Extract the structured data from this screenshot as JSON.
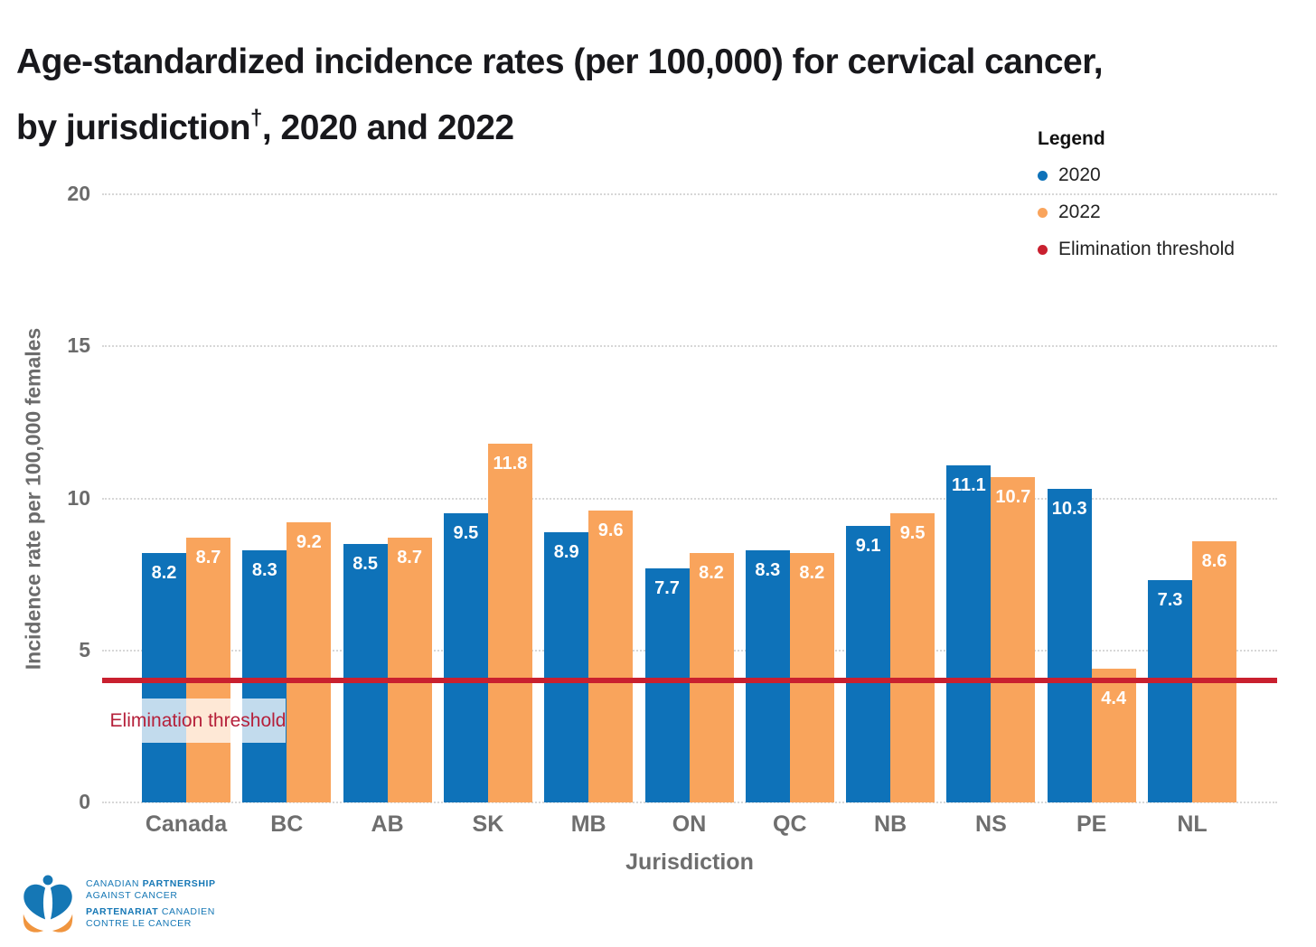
{
  "title": {
    "line1": "Age-standardized incidence rates (per 100,000) for cervical cancer,",
    "line2_pre": "by jurisdiction",
    "line2_sup": "†",
    "line2_post": ", 2020 and 2022"
  },
  "legend": {
    "heading": "Legend",
    "items": [
      {
        "label": "2020",
        "color": "#0e72b9"
      },
      {
        "label": "2022",
        "color": "#f9a45c"
      },
      {
        "label": "Elimination threshold",
        "color": "#c9202f"
      }
    ]
  },
  "chart_data": {
    "type": "bar",
    "title": "Age-standardized incidence rates (per 100,000) for cervical cancer, by jurisdiction, 2020 and 2022",
    "categories": [
      "Canada",
      "BC",
      "AB",
      "SK",
      "MB",
      "ON",
      "QC",
      "NB",
      "NS",
      "PE",
      "NL"
    ],
    "series": [
      {
        "name": "2020",
        "color": "#0e72b9",
        "values": [
          8.2,
          8.3,
          8.5,
          9.5,
          8.9,
          7.7,
          8.3,
          9.1,
          11.1,
          10.3,
          7.3
        ]
      },
      {
        "name": "2022",
        "color": "#f9a45c",
        "values": [
          8.7,
          9.2,
          8.7,
          11.8,
          9.6,
          8.2,
          8.2,
          9.5,
          10.7,
          4.4,
          8.6
        ]
      }
    ],
    "threshold": {
      "label": "Elimination threshold",
      "value": 4,
      "color": "#c9202f",
      "text_color": "#b5203a"
    },
    "xlabel": "Jurisdiction",
    "ylabel": "Incidence rate per 100,000 females",
    "ylim": [
      0,
      20
    ],
    "yticks": [
      0,
      5,
      10,
      15,
      20
    ],
    "grid": "dotted horizontal",
    "legend_position": "top-right"
  },
  "footer_logo": {
    "line1_a": "CANADIAN ",
    "line1_b": "PARTNERSHIP",
    "line2": "AGAINST CANCER",
    "line3_a": "PARTENARIAT",
    "line3_b": " CANADIEN",
    "line4": "CONTRE LE CANCER"
  }
}
